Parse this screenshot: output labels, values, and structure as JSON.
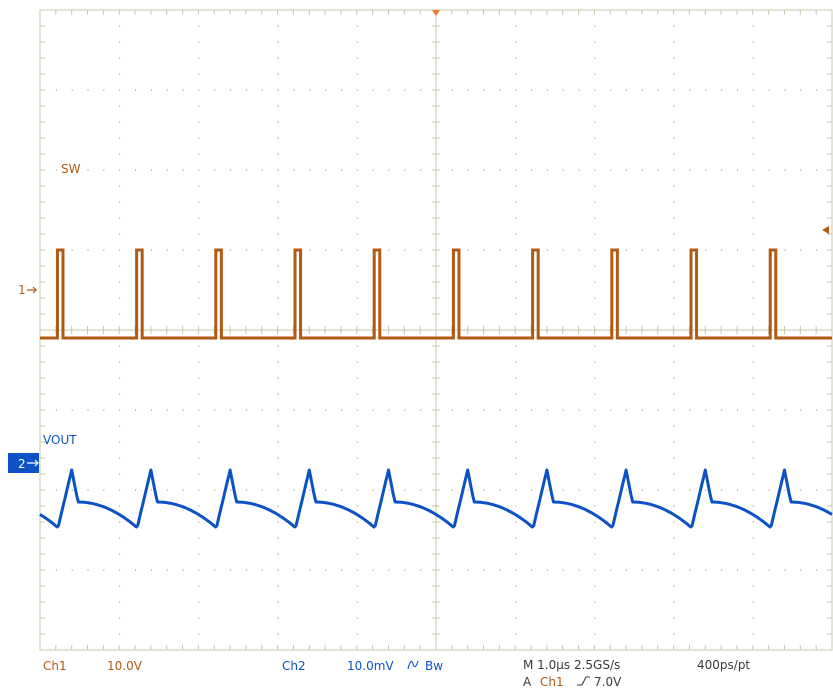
{
  "colors": {
    "ch1": "#b05a14",
    "ch2": "#0c52c4",
    "grid": "#c8c8aa",
    "label": "#3a3a3a",
    "trigger_marker": "#f07830"
  },
  "traces": {
    "ch1_label": "SW",
    "ch2_label": "VOUT",
    "ch1_marker": "1",
    "ch2_marker": "2"
  },
  "status": {
    "ch1": "Ch1",
    "ch1_scale": "10.0V",
    "ch2": "Ch2",
    "ch2_scale": "10.0mV",
    "ch2_coupling_icon": "ac-coupling-icon",
    "bw_limit": "Bw",
    "timebase": "M 1.0µs 2.5GS/s",
    "record_resolution": "400ps/pt",
    "trigger_prefix": "A",
    "trigger_source": "Ch1",
    "trigger_slope_icon": "rising-edge-icon",
    "trigger_level": "7.0V"
  },
  "chart_data": {
    "type": "line",
    "grid": true,
    "divisions": {
      "x": 10,
      "y": 8
    },
    "x_units": "µs",
    "x_per_div": 1.0,
    "series": [
      {
        "name": "SW",
        "channel": "Ch1",
        "volts_per_div": 10.0,
        "ground_div": -0.1,
        "period_us": 1.0,
        "first_edge_us": 0.22,
        "on_time_us": 0.07,
        "high_v": 11.0,
        "low_v": 0.0
      },
      {
        "name": "VOUT",
        "channel": "Ch2",
        "coupling": "AC",
        "volts_per_div": 0.01,
        "offset_div": -2.15,
        "period_us": 1.0,
        "peak_mv": 4.0,
        "valley_mv": -3.5
      }
    ]
  }
}
